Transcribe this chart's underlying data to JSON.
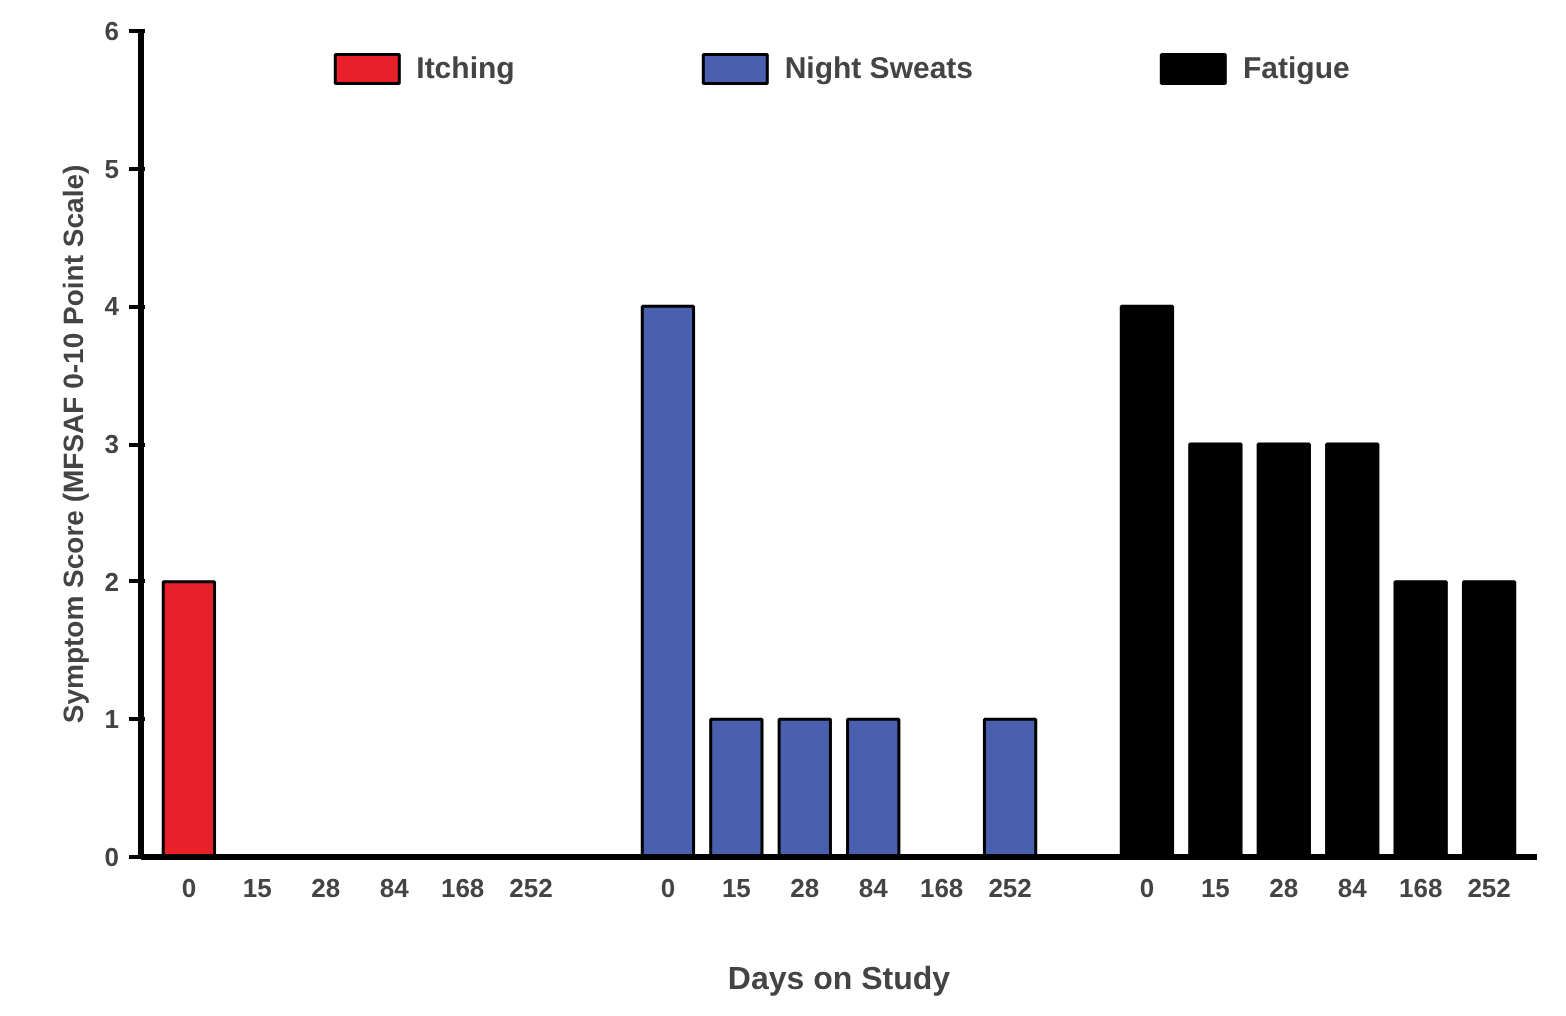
{
  "chart_data": {
    "type": "bar",
    "xlabel": "Days on Study",
    "ylabel": "Symptom Score (MFSAF 0-10 Point Scale)",
    "categories": [
      "0",
      "15",
      "28",
      "84",
      "168",
      "252",
      null,
      "0",
      "15",
      "28",
      "84",
      "168",
      "252",
      null,
      "0",
      "15",
      "28",
      "84",
      "168",
      "252"
    ],
    "series": [
      {
        "name": "Itching",
        "color": "#e8202a",
        "values": [
          2,
          null,
          null,
          null,
          null,
          null,
          null,
          null,
          null,
          null,
          null,
          null,
          null,
          null,
          null,
          null,
          null,
          null,
          null,
          null
        ]
      },
      {
        "name": "Night Sweats",
        "color": "#4a5fad",
        "values": [
          null,
          null,
          null,
          null,
          null,
          null,
          null,
          4,
          1,
          1,
          1,
          null,
          1,
          null,
          null,
          null,
          null,
          null,
          null,
          null
        ]
      },
      {
        "name": "Fatigue",
        "color": "#000000",
        "values": [
          null,
          null,
          null,
          null,
          null,
          null,
          null,
          null,
          null,
          null,
          null,
          null,
          null,
          null,
          4,
          3,
          3,
          3,
          2,
          2
        ]
      }
    ],
    "ylim": [
      0,
      6
    ],
    "yticks": [
      0,
      1,
      2,
      3,
      4,
      5,
      6
    ],
    "grid": false,
    "legend": "top"
  }
}
